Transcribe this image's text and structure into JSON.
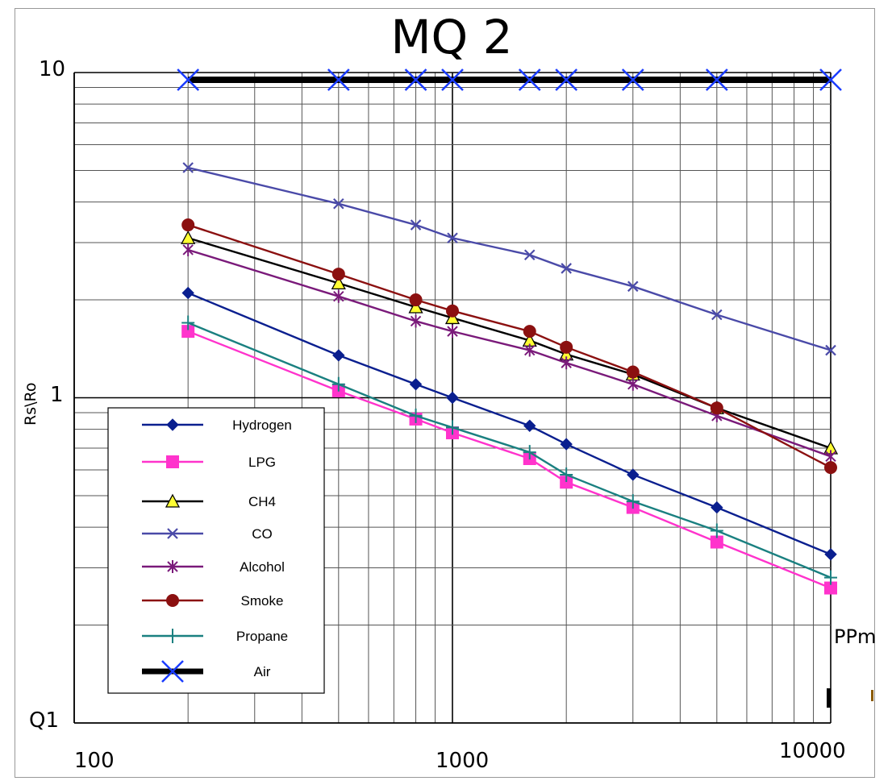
{
  "chart_data": {
    "type": "line",
    "title": "MQ 2",
    "ylabel": "Rs\\Ro",
    "unit_label": "PPm",
    "x_scale": "log",
    "y_scale": "log",
    "xlim": [
      100,
      10000
    ],
    "ylim": [
      0.1,
      10
    ],
    "x_tick_labels": [
      "100",
      "1000",
      "10000"
    ],
    "y_tick_labels": [
      "Q1",
      "1",
      "10"
    ],
    "grid": true,
    "legend_position": "bottom-left",
    "x": [
      200,
      500,
      800,
      1000,
      1600,
      2000,
      3000,
      5000,
      10000
    ],
    "series": [
      {
        "name": "Hydrogen",
        "color": "#0a1f8f",
        "marker": "diamond",
        "values": [
          2.1,
          1.35,
          1.1,
          1.0,
          0.82,
          0.72,
          0.58,
          0.46,
          0.33
        ]
      },
      {
        "name": "LPG",
        "color": "#ff33cc",
        "marker": "square",
        "values": [
          1.6,
          1.05,
          0.86,
          0.78,
          0.65,
          0.55,
          0.46,
          0.36,
          0.26
        ]
      },
      {
        "name": "CH4",
        "color": "#000000",
        "marker": "triangle",
        "values": [
          3.1,
          2.25,
          1.9,
          1.76,
          1.5,
          1.36,
          1.18,
          0.93,
          0.7
        ]
      },
      {
        "name": "CO",
        "color": "#4a4aa8",
        "marker": "x",
        "values": [
          5.1,
          3.95,
          3.4,
          3.1,
          2.75,
          2.5,
          2.2,
          1.8,
          1.4
        ]
      },
      {
        "name": "Alcohol",
        "color": "#7a1a7a",
        "marker": "star",
        "values": [
          2.85,
          2.05,
          1.72,
          1.6,
          1.4,
          1.28,
          1.1,
          0.88,
          0.66
        ]
      },
      {
        "name": "Smoke",
        "color": "#8b1010",
        "marker": "circle",
        "values": [
          3.4,
          2.4,
          2.0,
          1.85,
          1.6,
          1.43,
          1.2,
          0.93,
          0.61
        ]
      },
      {
        "name": "Propane",
        "color": "#1a8080",
        "marker": "plus",
        "values": [
          1.7,
          1.1,
          0.88,
          0.81,
          0.68,
          0.58,
          0.48,
          0.39,
          0.28
        ]
      },
      {
        "name": "Air",
        "color": "#000000",
        "marker": "bigx",
        "values": [
          9.5,
          9.5,
          9.5,
          9.5,
          9.5,
          9.5,
          9.5,
          9.5,
          9.5
        ]
      }
    ]
  }
}
